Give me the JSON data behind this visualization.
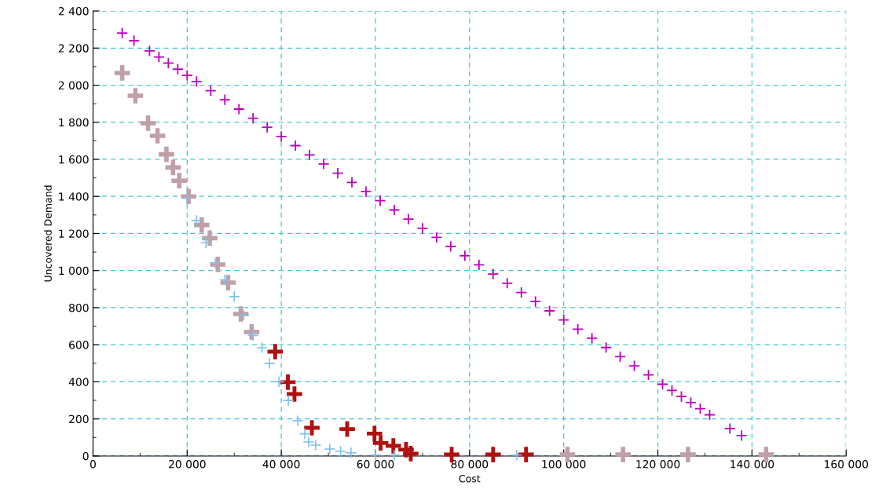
{
  "chart_data": {
    "type": "scatter",
    "xlabel": "Cost",
    "ylabel": "Uncovered Demand",
    "xlim": [
      0,
      160000
    ],
    "ylim": [
      0,
      2400
    ],
    "xticks": [
      0,
      {
        "value": 20000,
        "label": "20 000"
      },
      {
        "value": 40000,
        "label": "40 000"
      },
      {
        "value": 60000,
        "label": "60 000"
      },
      {
        "value": 80000,
        "label": "80 000"
      },
      {
        "value": 100000,
        "label": "100 000"
      },
      {
        "value": 120000,
        "label": "120 000"
      },
      {
        "value": 140000,
        "label": "140 000"
      },
      {
        "value": 160000,
        "label": "160 000"
      }
    ],
    "yticks": [
      0,
      200,
      400,
      600,
      800,
      {
        "value": 1000,
        "label": "1 000"
      },
      {
        "value": 1200,
        "label": "1 200"
      },
      {
        "value": 1400,
        "label": "1 400"
      },
      {
        "value": 1600,
        "label": "1 600"
      },
      {
        "value": 1800,
        "label": "1 800"
      },
      {
        "value": 2000,
        "label": "2 000"
      },
      {
        "value": 2200,
        "label": "2 200"
      },
      {
        "value": 2400,
        "label": "2 400"
      }
    ],
    "grid": true,
    "marker": "cross",
    "legend": false,
    "series": [
      {
        "color": "#c000c0",
        "x": [
          6200,
          8700,
          12000,
          14000,
          16000,
          18000,
          20000,
          22000,
          25000,
          28000,
          31000,
          34000,
          37000,
          40000,
          43000,
          46000,
          49000,
          52000,
          55000,
          58000,
          61000,
          64000,
          67000,
          70000,
          73000,
          76000,
          79000,
          82000,
          85000,
          88000,
          91000,
          94000,
          97000,
          100000,
          103000,
          106000,
          109000,
          112000,
          115000,
          118000,
          121000,
          123000,
          125000,
          127000,
          129000,
          131000,
          135300,
          137800
        ],
        "values": [
          2281,
          2240,
          2185,
          2152,
          2119,
          2086,
          2053,
          2020,
          1970,
          1921,
          1871,
          1822,
          1773,
          1723,
          1674,
          1624,
          1575,
          1525,
          1476,
          1426,
          1377,
          1327,
          1278,
          1228,
          1179,
          1130,
          1080,
          1031,
          981,
          932,
          882,
          833,
          783,
          734,
          684,
          635,
          585,
          536,
          486,
          437,
          387,
          354,
          321,
          288,
          255,
          222,
          148,
          110
        ]
      },
      {
        "color": "#c0a0a8",
        "x": [
          6200,
          9000,
          11700,
          13700,
          15600,
          17000,
          18300,
          20300,
          23100,
          24800,
          26500,
          28700,
          31400,
          33700,
          100800,
          112600,
          126400,
          143000
        ],
        "values": [
          2066,
          1943,
          1795,
          1727,
          1627,
          1556,
          1485,
          1400,
          1246,
          1175,
          1033,
          935,
          766,
          669,
          8,
          8,
          8,
          8
        ]
      },
      {
        "color": "#b01010",
        "x": [
          38700,
          41400,
          42800,
          46500,
          54000,
          59800,
          61100,
          63800,
          66500,
          67500,
          76200,
          85000,
          92000
        ],
        "values": [
          563,
          398,
          334,
          152,
          145,
          121,
          70,
          55,
          34,
          13,
          8,
          8,
          8
        ]
      },
      {
        "color": "#80c0ec",
        "x": [
          20000,
          22000,
          24000,
          26000,
          28000,
          30000,
          32000,
          34000,
          35900,
          37500,
          39500,
          41500,
          43500,
          45000,
          45800,
          47300,
          50300,
          52600,
          54800,
          60000,
          64000,
          90000
        ],
        "values": [
          1390,
          1270,
          1150,
          1040,
          950,
          860,
          760,
          650,
          584,
          500,
          400,
          300,
          190,
          120,
          76,
          59,
          38,
          25,
          17,
          5,
          5,
          5
        ]
      }
    ]
  }
}
